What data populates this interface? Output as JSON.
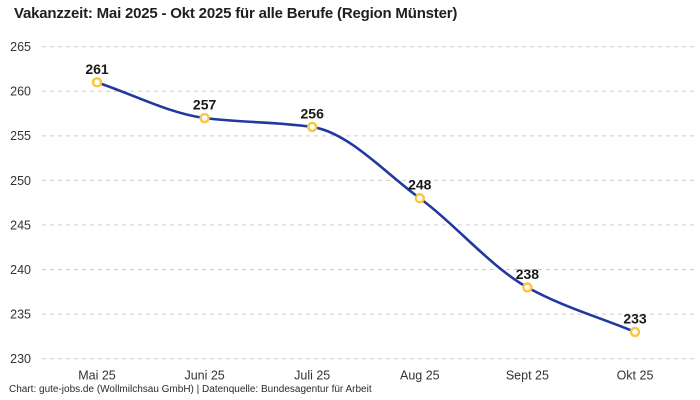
{
  "page": {
    "footer_credit": "Chart: gute-jobs.de (Wollmilchsau GmbH) | Datenquelle: Bundesagentur für Arbeit"
  },
  "chart_data": {
    "type": "line",
    "title": "Vakanzzeit: Mai 2025 - Okt 2025 für alle Berufe (Region Münster)",
    "categories": [
      "Mai 25",
      "Juni 25",
      "Juli 25",
      "Aug 25",
      "Sept 25",
      "Okt 25"
    ],
    "values": [
      261,
      257,
      256,
      248,
      238,
      233
    ],
    "data_labels": [
      261,
      257,
      256,
      248,
      238,
      233
    ],
    "xlabel": "",
    "ylabel": "",
    "ylim": [
      230,
      265
    ],
    "ytick_step": 5,
    "yticks": [
      230,
      235,
      240,
      245,
      250,
      255,
      260,
      265
    ],
    "grid": "horizontal-dashed",
    "legend": "none",
    "smooth": true,
    "colors": {
      "line": "#2038a0",
      "marker_stroke": "#fbc53d",
      "marker_fill": "#ffffff",
      "grid": "#cccccc",
      "tick_text": "#333333",
      "label_text": "#1a1a1a",
      "title_text": "#1f1f1f",
      "background": "#ffffff"
    }
  }
}
